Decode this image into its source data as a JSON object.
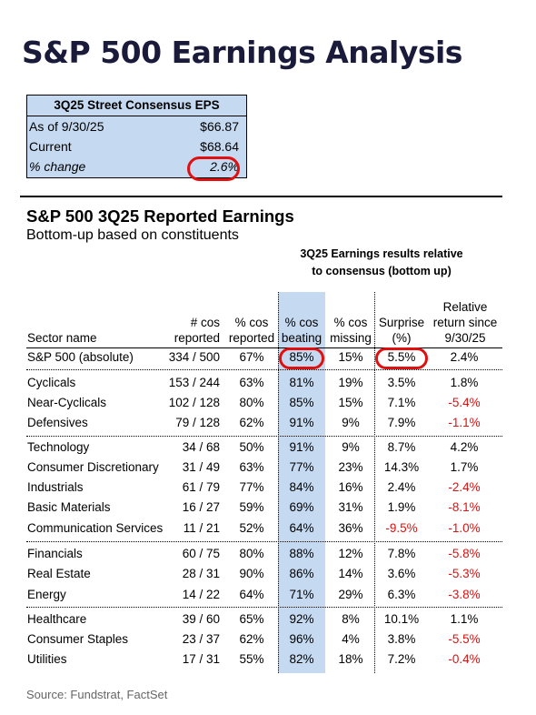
{
  "title": "S&P 500 Earnings Analysis",
  "eps_box": {
    "header": "3Q25 Street Consensus EPS",
    "rows": [
      {
        "label": "As of 9/30/25",
        "value": "$66.87"
      },
      {
        "label": "Current",
        "value": "$68.64"
      },
      {
        "label": "% change",
        "value": "2.6%"
      }
    ]
  },
  "section": {
    "title": "S&P 500 3Q25 Reported Earnings",
    "subtitle": "Bottom-up based on constituents",
    "group_header_line1": "3Q25 Earnings results relative",
    "group_header_line2": "to consensus (bottom up)"
  },
  "columns": {
    "name": "Sector name",
    "reported_l1": "# cos",
    "reported_l2": "reported",
    "pct_l1": "% cos",
    "pct_l2": "reported",
    "beat_l1": "% cos",
    "beat_l2": "beating",
    "miss_l1": "% cos",
    "miss_l2": "missing",
    "surp_l1": "Surprise",
    "surp_l2": "(%)",
    "rel_l1": "Relative",
    "rel_l2": "return since",
    "rel_l3": "9/30/25"
  },
  "rows": [
    {
      "name": "S&P 500 (absolute)",
      "reported": "334 / 500",
      "pct": "67%",
      "beat": "85%",
      "miss": "15%",
      "surp": "5.5%",
      "rel": "2.4%"
    },
    {
      "name": "Cyclicals",
      "reported": "153 / 244",
      "pct": "63%",
      "beat": "81%",
      "miss": "19%",
      "surp": "3.5%",
      "rel": "1.8%"
    },
    {
      "name": "Near-Cyclicals",
      "reported": "102 / 128",
      "pct": "80%",
      "beat": "85%",
      "miss": "15%",
      "surp": "7.1%",
      "rel": "-5.4%"
    },
    {
      "name": "Defensives",
      "reported": "79 / 128",
      "pct": "62%",
      "beat": "91%",
      "miss": "9%",
      "surp": "7.9%",
      "rel": "-1.1%"
    },
    {
      "name": "Technology",
      "reported": "34 / 68",
      "pct": "50%",
      "beat": "91%",
      "miss": "9%",
      "surp": "8.7%",
      "rel": "4.2%"
    },
    {
      "name": "Consumer Discretionary",
      "reported": "31 / 49",
      "pct": "63%",
      "beat": "77%",
      "miss": "23%",
      "surp": "14.3%",
      "rel": "1.7%"
    },
    {
      "name": "Industrials",
      "reported": "61 / 79",
      "pct": "77%",
      "beat": "84%",
      "miss": "16%",
      "surp": "2.4%",
      "rel": "-2.4%"
    },
    {
      "name": "Basic Materials",
      "reported": "16 / 27",
      "pct": "59%",
      "beat": "69%",
      "miss": "31%",
      "surp": "1.9%",
      "rel": "-8.1%"
    },
    {
      "name": "Communication Services",
      "reported": "11 / 21",
      "pct": "52%",
      "beat": "64%",
      "miss": "36%",
      "surp": "-9.5%",
      "rel": "-1.0%"
    },
    {
      "name": "Financials",
      "reported": "60 / 75",
      "pct": "80%",
      "beat": "88%",
      "miss": "12%",
      "surp": "7.8%",
      "rel": "-5.8%"
    },
    {
      "name": "Real Estate",
      "reported": "28 / 31",
      "pct": "90%",
      "beat": "86%",
      "miss": "14%",
      "surp": "3.6%",
      "rel": "-5.3%"
    },
    {
      "name": "Energy",
      "reported": "14 / 22",
      "pct": "64%",
      "beat": "71%",
      "miss": "29%",
      "surp": "6.3%",
      "rel": "-3.8%"
    },
    {
      "name": "Healthcare",
      "reported": "39 / 60",
      "pct": "65%",
      "beat": "92%",
      "miss": "8%",
      "surp": "10.1%",
      "rel": "1.1%"
    },
    {
      "name": "Consumer Staples",
      "reported": "23 / 37",
      "pct": "62%",
      "beat": "96%",
      "miss": "4%",
      "surp": "3.8%",
      "rel": "-5.5%"
    },
    {
      "name": "Utilities",
      "reported": "17 / 31",
      "pct": "55%",
      "beat": "82%",
      "miss": "18%",
      "surp": "7.2%",
      "rel": "-0.4%"
    }
  ],
  "source": "Source: Fundstrat, FactSet",
  "colors": {
    "highlight": "#c5d9f1",
    "negative": "#e01010",
    "circle": "#e01010"
  }
}
